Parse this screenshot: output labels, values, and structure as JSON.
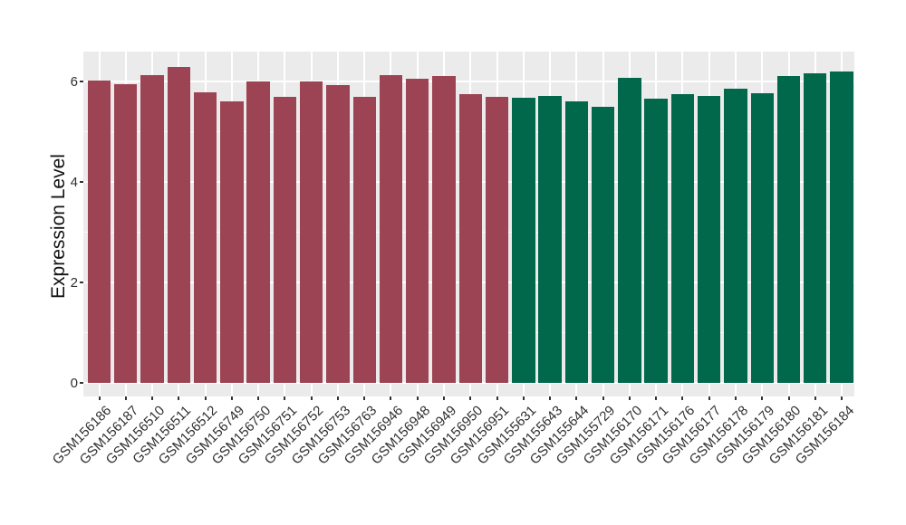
{
  "chart_data": {
    "type": "bar",
    "title": "",
    "xlabel": "",
    "ylabel": "Expression Level",
    "ylim": [
      -0.27,
      6.59
    ],
    "yticks": [
      0,
      2,
      4,
      6
    ],
    "yticks_minor": [
      1,
      3,
      5
    ],
    "grid": "major and minor white gridlines on gray panel",
    "legend_position": "none",
    "panel_background": "#EBEBEB",
    "gridline_color": "#FFFFFF",
    "categories": [
      "GSM156186",
      "GSM156187",
      "GSM156510",
      "GSM156511",
      "GSM156512",
      "GSM156749",
      "GSM156750",
      "GSM156751",
      "GSM156752",
      "GSM156753",
      "GSM156763",
      "GSM156946",
      "GSM156948",
      "GSM156949",
      "GSM156950",
      "GSM156951",
      "GSM155631",
      "GSM155643",
      "GSM155644",
      "GSM155729",
      "GSM156170",
      "GSM156171",
      "GSM156176",
      "GSM156177",
      "GSM156178",
      "GSM156179",
      "GSM156180",
      "GSM156181",
      "GSM156184"
    ],
    "values": [
      6.02,
      5.95,
      6.14,
      6.29,
      5.79,
      5.61,
      6.01,
      5.71,
      6.01,
      5.94,
      5.71,
      6.14,
      6.07,
      6.11,
      5.76,
      5.71,
      5.68,
      5.72,
      5.61,
      5.5,
      6.09,
      5.67,
      5.76,
      5.72,
      5.87,
      5.78,
      6.11,
      6.18,
      6.2
    ],
    "groups": [
      "groupA",
      "groupA",
      "groupA",
      "groupA",
      "groupA",
      "groupA",
      "groupA",
      "groupA",
      "groupA",
      "groupA",
      "groupA",
      "groupA",
      "groupA",
      "groupA",
      "groupA",
      "groupA",
      "groupB",
      "groupB",
      "groupB",
      "groupB",
      "groupB",
      "groupB",
      "groupB",
      "groupB",
      "groupB",
      "groupB",
      "groupB",
      "groupB",
      "groupB"
    ],
    "group_colors": {
      "groupA": "#9C4453",
      "groupB": "#01684B"
    }
  }
}
